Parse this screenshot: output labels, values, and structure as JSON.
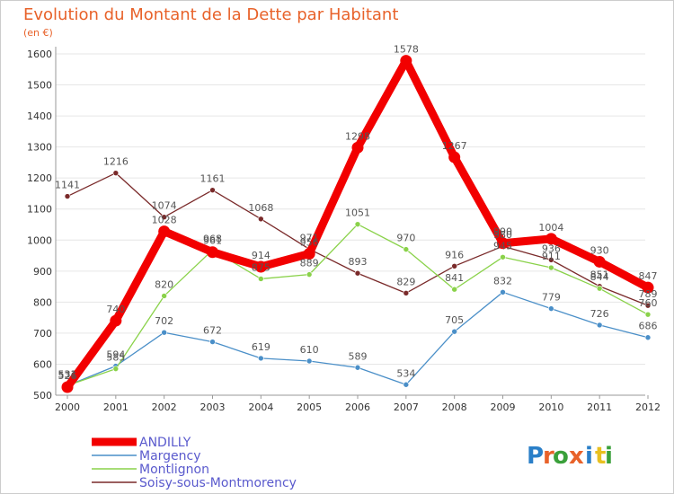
{
  "chart_data": {
    "type": "line",
    "title": "Evolution du Montant de la Dette par Habitant",
    "subtitle": "(en €)",
    "xlabel": "",
    "ylabel": "",
    "x": [
      "2000",
      "2001",
      "2002",
      "2003",
      "2004",
      "2005",
      "2006",
      "2007",
      "2008",
      "2009",
      "2010",
      "2011",
      "2012"
    ],
    "ylim": [
      500,
      1600
    ],
    "yticks": [
      500,
      600,
      700,
      800,
      900,
      1000,
      1100,
      1200,
      1300,
      1400,
      1500,
      1600
    ],
    "grid": "horizontal",
    "legend": "bottom-left",
    "series": [
      {
        "name": "Soisy-sous-Montmorency",
        "color": "#7a2a2a",
        "values": [
          1141,
          1216,
          1074,
          1161,
          1068,
          971,
          893,
          829,
          916,
          980,
          936,
          851,
          789
        ]
      },
      {
        "name": "Margency",
        "color": "#4a8fc8",
        "values": [
          531,
          594,
          702,
          672,
          619,
          610,
          589,
          534,
          705,
          832,
          779,
          726,
          686
        ]
      },
      {
        "name": "Montlignon",
        "color": "#8ad24a",
        "values": [
          531,
          585,
          820,
          968,
          875,
          889,
          1051,
          970,
          841,
          945,
          911,
          844,
          760
        ]
      },
      {
        "name": "ANDILLY",
        "color": "#f20000",
        "values": [
          526,
          740,
          1028,
          961,
          914,
          956,
          1298,
          1578,
          1267,
          990,
          1004,
          930,
          847
        ]
      }
    ],
    "legend_order": [
      "ANDILLY",
      "Margency",
      "Montlignon",
      "Soisy-sous-Montmorency"
    ]
  },
  "logo": {
    "letters": [
      "P",
      "r",
      "o",
      "x",
      "i",
      "t",
      "i"
    ],
    "colors": [
      "#2a7fc8",
      "#e8622a",
      "#3aa03a",
      "#e8622a",
      "#2a7fc8",
      "#e8c020",
      "#3aa03a"
    ]
  }
}
